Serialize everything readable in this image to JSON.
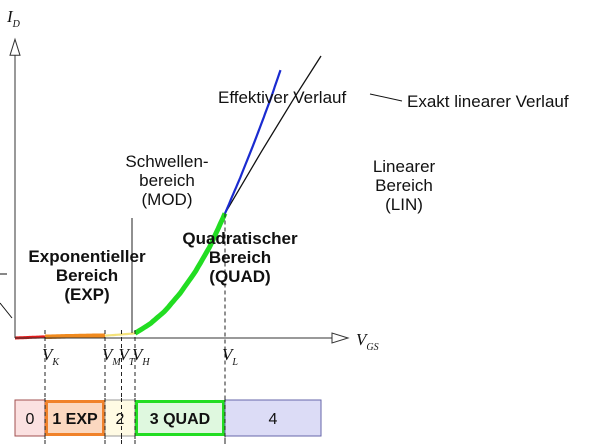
{
  "chart_data": {
    "type": "line",
    "title": "",
    "axes": {
      "y_symbol": "I",
      "y_sub": "D",
      "x_symbol": "V",
      "x_sub": "GS"
    },
    "thresholds": [
      {
        "symbol": "V",
        "sub": "K",
        "x": 1.0
      },
      {
        "symbol": "V",
        "sub": "M",
        "x": 3.0
      },
      {
        "symbol": "V",
        "sub": "T",
        "x": 3.55
      },
      {
        "symbol": "V",
        "sub": "H",
        "x": 4.0
      },
      {
        "symbol": "V",
        "sub": "L",
        "x": 7.0
      }
    ],
    "xlim": [
      0,
      10.7
    ],
    "ylim": [
      0,
      12.2
    ],
    "series": [
      {
        "name": "Effektiver Verlauf",
        "points": [
          [
            0,
            0
          ],
          [
            1,
            0.05
          ],
          [
            2,
            0.08
          ],
          [
            3,
            0.1
          ],
          [
            3.55,
            0.15
          ],
          [
            4,
            0.2
          ],
          [
            4.5,
            0.6
          ],
          [
            5,
            1.15
          ],
          [
            5.5,
            1.9
          ],
          [
            6,
            2.8
          ],
          [
            6.5,
            3.9
          ],
          [
            7,
            5.3
          ],
          [
            7.5,
            6.8
          ],
          [
            8,
            8.4
          ],
          [
            8.5,
            10.1
          ],
          [
            8.85,
            11.4
          ]
        ]
      },
      {
        "name": "Exakt linearer Verlauf",
        "points": [
          [
            7,
            5.3
          ],
          [
            8.2,
            7.9
          ],
          [
            9.3,
            10.2
          ],
          [
            10.2,
            12.0
          ]
        ]
      }
    ],
    "regions": [
      {
        "name": "Exponentieller Bereich",
        "abbr": "EXP",
        "x_range": [
          1.0,
          3.0
        ],
        "color": "#f08a1e"
      },
      {
        "name": "Schwellenbereich",
        "abbr": "MOD",
        "x_range": [
          3.0,
          4.0
        ],
        "color": "#f4e27a"
      },
      {
        "name": "Quadratischer Bereich",
        "abbr": "QUAD",
        "x_range": [
          4.0,
          7.0
        ],
        "color": "#22dd22"
      },
      {
        "name": "Linearer Bereich",
        "abbr": "LIN",
        "x_range": [
          7.0,
          8.85
        ],
        "color": "#1a2bd0"
      }
    ],
    "leading_segment_color": "#e41a1a",
    "annotations": {
      "effektiv": "Effektiver Verlauf",
      "exakt": "Exakt linearer Verlauf",
      "lin": [
        "Linearer",
        "Bereich",
        "(LIN)"
      ],
      "mod": [
        "Schwellen-",
        "bereich",
        "(MOD)"
      ],
      "quad": [
        "Quadratischer",
        "Bereich",
        "(QUAD)"
      ],
      "exp": [
        "Exponentieller",
        "Bereich",
        "(EXP)"
      ]
    }
  },
  "band": [
    {
      "label": "0",
      "x_range": [
        0.0,
        1.0
      ],
      "fill": "#fbe1e1",
      "stroke": "#a05050"
    },
    {
      "label": "1 EXP",
      "x_range": [
        1.0,
        3.0
      ],
      "fill": "#fbd8c0",
      "stroke": "#f0822a",
      "bold": true
    },
    {
      "label": "2",
      "x_range": [
        3.0,
        4.0
      ],
      "fill": "#fffbe4",
      "stroke": "#999999"
    },
    {
      "label": "3 QUAD",
      "x_range": [
        4.0,
        7.0
      ],
      "fill": "#dff8df",
      "stroke": "#22dd22",
      "bold": true
    },
    {
      "label": "4",
      "x_range": [
        7.0,
        10.2
      ],
      "fill": "#dcdcf6",
      "stroke": "#6666aa"
    }
  ]
}
